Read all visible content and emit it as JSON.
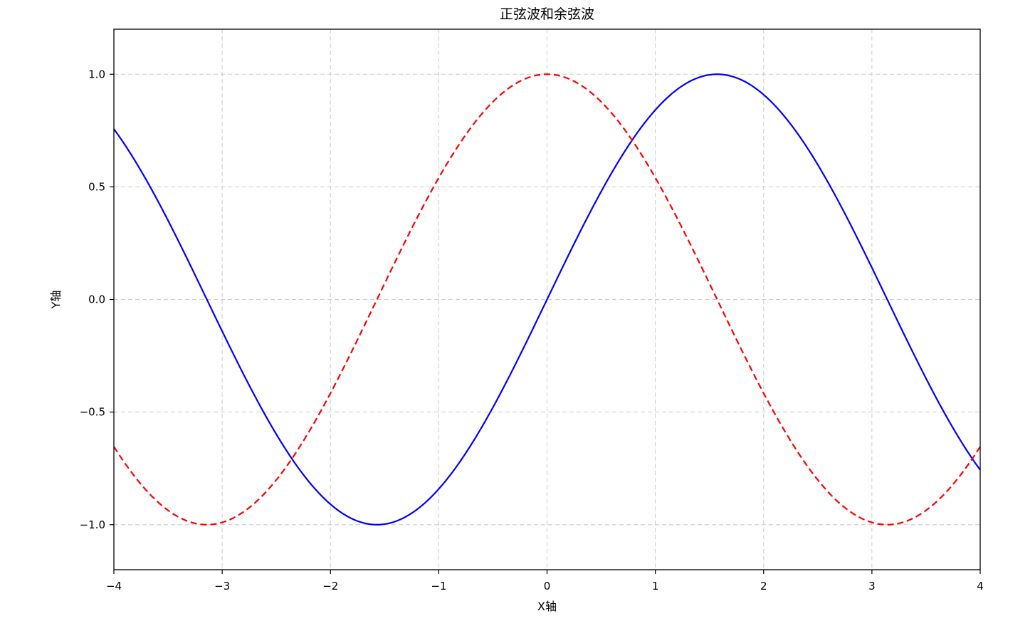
{
  "chart_data": {
    "type": "line",
    "title": "正弦波和余弦波",
    "xlabel": "X轴",
    "ylabel": "Y轴",
    "xlim": [
      -4,
      4
    ],
    "ylim": [
      -1.2,
      1.2
    ],
    "grid": true,
    "xticks": [
      -4,
      -3,
      -2,
      -1,
      0,
      1,
      2,
      3,
      4
    ],
    "xtick_labels": [
      "−4",
      "−3",
      "−2",
      "−1",
      "0",
      "1",
      "2",
      "3",
      "4"
    ],
    "yticks": [
      -1.0,
      -0.5,
      0.0,
      0.5,
      1.0
    ],
    "ytick_labels": [
      "−1.0",
      "−0.5",
      "0.0",
      "0.5",
      "1.0"
    ],
    "series": [
      {
        "function": "sin(x)",
        "color": "#0000ff",
        "linestyle": "solid",
        "x": [
          -4.0,
          -3.5,
          -3.0,
          -2.5,
          -2.0,
          -1.5,
          -1.0,
          -0.5,
          0.0,
          0.5,
          1.0,
          1.5,
          2.0,
          2.5,
          3.0,
          3.5,
          4.0
        ],
        "y": [
          0.757,
          0.351,
          -0.141,
          -0.598,
          -0.909,
          -0.997,
          -0.841,
          -0.479,
          0.0,
          0.479,
          0.841,
          0.997,
          0.909,
          0.598,
          0.141,
          -0.351,
          -0.757
        ]
      },
      {
        "function": "cos(x)",
        "color": "#ff0000",
        "linestyle": "dashed",
        "x": [
          -4.0,
          -3.5,
          -3.0,
          -2.5,
          -2.0,
          -1.5,
          -1.0,
          -0.5,
          0.0,
          0.5,
          1.0,
          1.5,
          2.0,
          2.5,
          3.0,
          3.5,
          4.0
        ],
        "y": [
          -0.654,
          -0.936,
          -0.99,
          -0.801,
          -0.416,
          0.071,
          0.54,
          0.878,
          1.0,
          0.878,
          0.54,
          0.071,
          -0.416,
          -0.801,
          -0.99,
          -0.936,
          -0.654
        ]
      }
    ]
  }
}
